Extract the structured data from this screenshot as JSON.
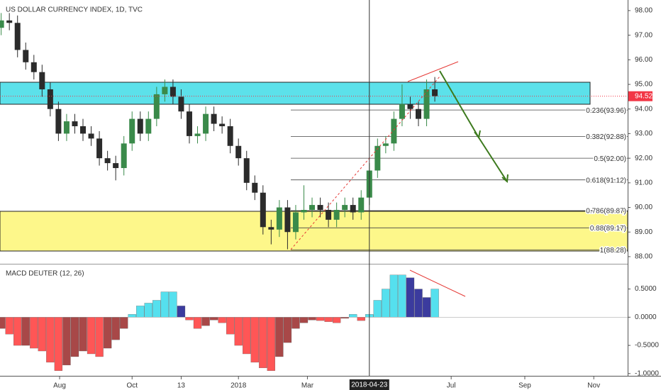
{
  "chart_data": [
    {
      "type": "candlestick",
      "title": "US DOLLAR CURRENCY INDEX, 1D, TVC",
      "x": [
        "2017-06-12",
        "2017-06-19",
        "2017-06-26",
        "2017-07-03",
        "2017-07-10",
        "2017-07-17",
        "2017-07-24",
        "2017-07-31",
        "2017-08-07",
        "2017-08-14",
        "2017-08-21",
        "2017-08-28",
        "2017-09-04",
        "2017-09-11",
        "2017-09-18",
        "2017-09-25",
        "2017-10-02",
        "2017-10-09",
        "2017-10-16",
        "2017-10-23",
        "2017-10-30",
        "2017-11-06",
        "2017-11-13",
        "2017-11-20",
        "2017-11-27",
        "2017-12-04",
        "2017-12-11",
        "2017-12-18",
        "2017-12-25",
        "2018-01-01",
        "2018-01-08",
        "2018-01-15",
        "2018-01-22",
        "2018-01-29",
        "2018-02-05",
        "2018-02-12",
        "2018-02-19",
        "2018-02-26",
        "2018-03-05",
        "2018-03-12",
        "2018-03-19",
        "2018-03-26",
        "2018-04-02",
        "2018-04-09",
        "2018-04-16",
        "2018-04-23",
        "2018-04-30",
        "2018-05-07",
        "2018-05-14",
        "2018-05-21",
        "2018-05-28",
        "2018-06-04",
        "2018-06-11",
        "2018-06-18"
      ],
      "open": [
        97.3,
        97.6,
        97.5,
        96.4,
        95.9,
        95.5,
        94.8,
        94.0,
        93.0,
        93.5,
        93.3,
        93.0,
        92.8,
        92.0,
        91.8,
        91.6,
        92.6,
        93.6,
        93.0,
        93.6,
        94.6,
        94.9,
        94.5,
        93.9,
        92.9,
        93.0,
        93.8,
        93.4,
        93.3,
        92.5,
        92.0,
        91.0,
        90.6,
        89.2,
        89.1,
        90.0,
        89.0,
        89.8,
        89.9,
        90.1,
        89.9,
        89.5,
        89.9,
        90.1,
        89.8,
        90.4,
        91.5,
        92.5,
        92.6,
        93.6,
        94.2,
        94.0,
        93.6,
        94.8
      ],
      "high": [
        97.9,
        97.9,
        97.8,
        96.7,
        96.2,
        95.8,
        95.1,
        94.3,
        93.8,
        93.8,
        93.6,
        93.3,
        93.1,
        92.3,
        92.1,
        92.9,
        93.9,
        93.9,
        93.9,
        94.9,
        95.2,
        95.2,
        94.8,
        94.2,
        93.3,
        94.1,
        94.1,
        93.7,
        93.6,
        92.8,
        92.3,
        91.3,
        90.9,
        89.5,
        90.3,
        90.3,
        90.1,
        90.9,
        90.4,
        90.4,
        90.2,
        90.2,
        90.4,
        90.4,
        90.7,
        91.8,
        92.8,
        92.9,
        93.9,
        95.0,
        94.5,
        94.3,
        95.2,
        95.3
      ],
      "low": [
        97.0,
        97.2,
        96.1,
        95.6,
        95.2,
        94.5,
        93.7,
        92.7,
        92.7,
        93.0,
        92.7,
        92.5,
        91.7,
        91.5,
        91.1,
        91.3,
        92.3,
        92.7,
        92.7,
        93.3,
        94.3,
        94.2,
        93.6,
        92.6,
        92.6,
        92.7,
        93.1,
        93.0,
        92.2,
        91.7,
        90.7,
        90.3,
        88.9,
        88.5,
        88.8,
        88.3,
        88.7,
        89.5,
        89.6,
        89.6,
        89.2,
        89.2,
        89.6,
        89.5,
        89.5,
        90.1,
        91.2,
        92.2,
        92.3,
        93.3,
        93.6,
        93.3,
        93.3,
        94.3
      ],
      "close": [
        97.6,
        97.5,
        96.4,
        95.9,
        95.5,
        94.8,
        94.0,
        93.0,
        93.5,
        93.3,
        93.0,
        92.8,
        92.0,
        91.8,
        91.6,
        92.6,
        93.6,
        93.0,
        93.6,
        94.6,
        94.9,
        94.5,
        93.9,
        92.9,
        93.0,
        93.8,
        93.4,
        93.3,
        92.5,
        92.0,
        91.0,
        90.6,
        89.2,
        89.1,
        90.0,
        89.0,
        89.8,
        89.9,
        90.1,
        89.9,
        89.5,
        89.9,
        90.1,
        89.8,
        90.4,
        91.5,
        92.5,
        92.6,
        93.6,
        94.2,
        94.0,
        93.6,
        94.8,
        94.52
      ],
      "up_color": "#3a8a4a",
      "down_color": "#2b2b2b",
      "last_price": {
        "value": 94.52,
        "label": "94.52"
      },
      "last_price_color": "#f23645",
      "xlim": [
        "2017-06-11",
        "2018-11-30"
      ],
      "ylim": [
        87.71,
        98.43
      ],
      "yticks": [
        {
          "value": 98,
          "label": "98.00"
        },
        {
          "value": 97,
          "label": "97.00"
        },
        {
          "value": 96,
          "label": "96.00"
        },
        {
          "value": 95,
          "label": "95.00"
        },
        {
          "value": 94,
          "label": "94.00"
        },
        {
          "value": 93,
          "label": "93.00"
        },
        {
          "value": 92,
          "label": "92.00"
        },
        {
          "value": 91,
          "label": "91.00"
        },
        {
          "value": 90,
          "label": "90.00"
        },
        {
          "value": 89,
          "label": "89.00"
        },
        {
          "value": 88,
          "label": "88.00"
        }
      ],
      "fib_levels": [
        {
          "label": "0.236(93.96)",
          "value": 93.96
        },
        {
          "label": "0.382(92.88)",
          "value": 92.88
        },
        {
          "label": "0.5(92.00)",
          "value": 92.0
        },
        {
          "label": "0.618(91.12)",
          "value": 91.12
        },
        {
          "label": "0.786(89.87)",
          "value": 89.87
        },
        {
          "label": "0.88(89.17)",
          "value": 89.17
        },
        {
          "label": "1(88.28)",
          "value": 88.28
        }
      ]
    },
    {
      "type": "histogram",
      "title": "MACD DEUTER (12, 26)",
      "values": [
        -0.2,
        -0.3,
        -0.5,
        -0.5,
        -0.55,
        -0.6,
        -0.8,
        -0.95,
        -0.85,
        -0.7,
        -0.6,
        -0.65,
        -0.7,
        -0.55,
        -0.4,
        -0.2,
        0.05,
        0.2,
        0.25,
        0.3,
        0.45,
        0.45,
        0.2,
        -0.05,
        -0.2,
        -0.15,
        -0.05,
        -0.1,
        -0.3,
        -0.5,
        -0.65,
        -0.8,
        -0.9,
        -0.95,
        -0.7,
        -0.45,
        -0.2,
        -0.1,
        -0.05,
        -0.06,
        -0.08,
        -0.1,
        -0.02,
        0.05,
        -0.06,
        0.05,
        0.3,
        0.5,
        0.75,
        0.75,
        0.7,
        0.5,
        0.35,
        0.5
      ],
      "colors": {
        "pos_rising": "#55e0ee",
        "pos_falling": "#3b3b9e",
        "neg_falling": "#ff5656",
        "neg_rising": "#a84848"
      },
      "xlim": [
        "2017-06-11",
        "2018-11-30"
      ],
      "ylim": [
        -1.04,
        0.91
      ],
      "yticks": [
        {
          "value": 0.5,
          "label": "0.5000"
        },
        {
          "value": 0,
          "label": "0.0000"
        },
        {
          "value": -0.5,
          "label": "-0.5000"
        },
        {
          "value": -1,
          "label": "-1.0000"
        }
      ],
      "xticks": [
        {
          "value": "2017-08-01",
          "label": "Aug"
        },
        {
          "value": "2017-10-02",
          "label": "Oct"
        },
        {
          "value": "2017-11-13",
          "label": "13"
        },
        {
          "value": "2018-01-01",
          "label": "2018"
        },
        {
          "value": "2018-03-01",
          "label": "Mar"
        },
        {
          "value": "2018-07-02",
          "label": "Jul"
        },
        {
          "value": "2018-09-03",
          "label": "Sep"
        },
        {
          "value": "2018-11-01",
          "label": "Nov"
        }
      ],
      "crosshair": "2018-04-23"
    }
  ]
}
